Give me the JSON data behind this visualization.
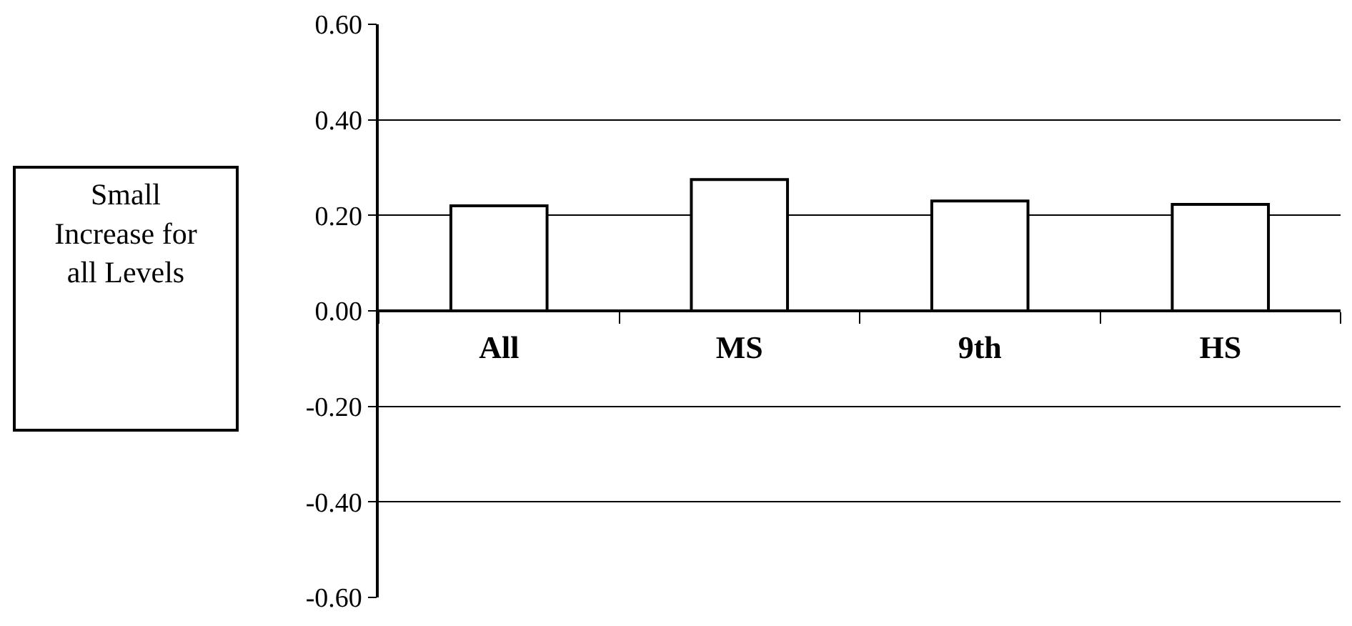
{
  "chart_data": {
    "type": "bar",
    "categories": [
      "All",
      "MS",
      "9th",
      "HS"
    ],
    "values": [
      0.22,
      0.275,
      0.23,
      0.223
    ],
    "color": "#ffffff",
    "ylim": [
      -0.6,
      0.6
    ],
    "yticks": [
      {
        "value": -0.6,
        "label": "-0.60"
      },
      {
        "value": -0.4,
        "label": "-0.40"
      },
      {
        "value": -0.2,
        "label": "-0.20"
      },
      {
        "value": 0,
        "label": "0.00"
      },
      {
        "value": 0.2,
        "label": "0.20"
      },
      {
        "value": 0.4,
        "label": "0.40"
      },
      {
        "value": 0.6,
        "label": "0.60"
      }
    ],
    "grid": "y",
    "legend": false,
    "annotations": [
      "Small\nIncrease for\nall Levels"
    ]
  }
}
